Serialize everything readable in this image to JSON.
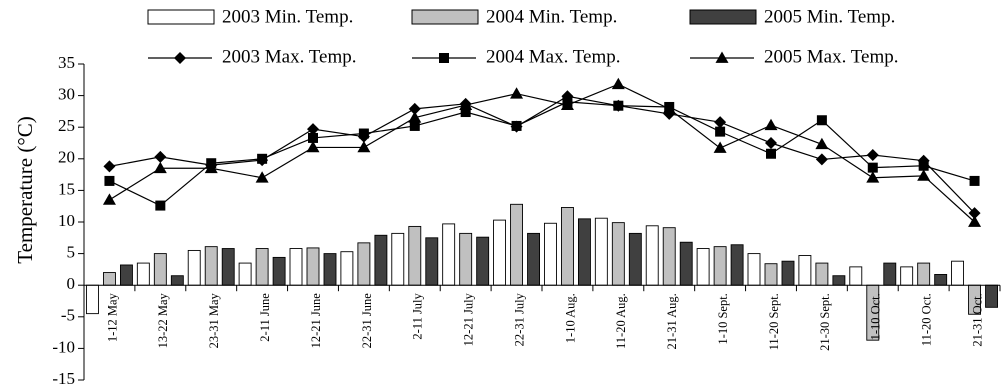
{
  "chart_data": {
    "type": "bar",
    "ylabel": "Temperature (°C)",
    "ylim": [
      -15,
      35
    ],
    "yticks": [
      35,
      30,
      25,
      20,
      15,
      10,
      5,
      0,
      -5,
      -10,
      -15
    ],
    "categories": [
      "1-12 May",
      "13-22 May",
      "23-31 May",
      "2-11 June",
      "12-21 June",
      "22-31 June",
      "2-11 July",
      "12-21 July",
      "22-31 July",
      "1-10 Aug.",
      "11-20 Aug.",
      "21-31 Aug.",
      "1-10 Sept.",
      "11-20 Sept.",
      "21-30 Sept.",
      "1-10 Oct.",
      "11-20 Oct.",
      "21-31 Oct."
    ],
    "bar_series": [
      {
        "name": "2003 Min. Temp.",
        "color": "#ffffff",
        "values": [
          -4.5,
          3.5,
          5.5,
          3.5,
          5.8,
          5.3,
          8.2,
          9.7,
          10.3,
          9.8,
          10.6,
          9.4,
          5.8,
          5.0,
          4.7,
          2.9,
          2.9,
          3.8
        ]
      },
      {
        "name": "2004 Min. Temp.",
        "color": "#c0c0c0",
        "values": [
          2.0,
          5.0,
          6.1,
          5.8,
          5.9,
          6.7,
          9.3,
          8.2,
          12.8,
          12.3,
          9.9,
          9.1,
          6.1,
          3.4,
          3.5,
          -8.7,
          3.5,
          -4.6
        ]
      },
      {
        "name": "2005 Min. Temp.",
        "color": "#404040",
        "values": [
          3.2,
          1.5,
          5.8,
          4.4,
          5.0,
          7.9,
          7.5,
          7.6,
          8.2,
          10.5,
          8.2,
          6.8,
          6.4,
          3.8,
          1.5,
          3.5,
          1.7,
          -3.5
        ]
      }
    ],
    "line_series": [
      {
        "name": "2003 Max. Temp.",
        "marker": "diamond",
        "values": [
          18.8,
          20.3,
          19.0,
          19.8,
          24.7,
          23.5,
          27.9,
          28.7,
          25.1,
          29.9,
          28.4,
          27.1,
          25.8,
          22.5,
          19.9,
          20.6,
          19.7,
          11.4
        ]
      },
      {
        "name": "2004 Max. Temp.",
        "marker": "square",
        "values": [
          16.5,
          12.6,
          19.3,
          20.0,
          23.3,
          24.0,
          25.2,
          27.4,
          25.2,
          29.0,
          28.4,
          28.2,
          24.3,
          20.8,
          26.1,
          18.6,
          18.9,
          16.5
        ]
      },
      {
        "name": "2005 Max. Temp.",
        "marker": "triangle",
        "values": [
          13.5,
          18.5,
          18.5,
          17.0,
          21.8,
          21.8,
          26.5,
          28.5,
          30.3,
          28.5,
          31.8,
          27.9,
          21.7,
          25.3,
          22.3,
          17.0,
          17.3,
          10.0
        ]
      }
    ],
    "legend_position": "top"
  }
}
